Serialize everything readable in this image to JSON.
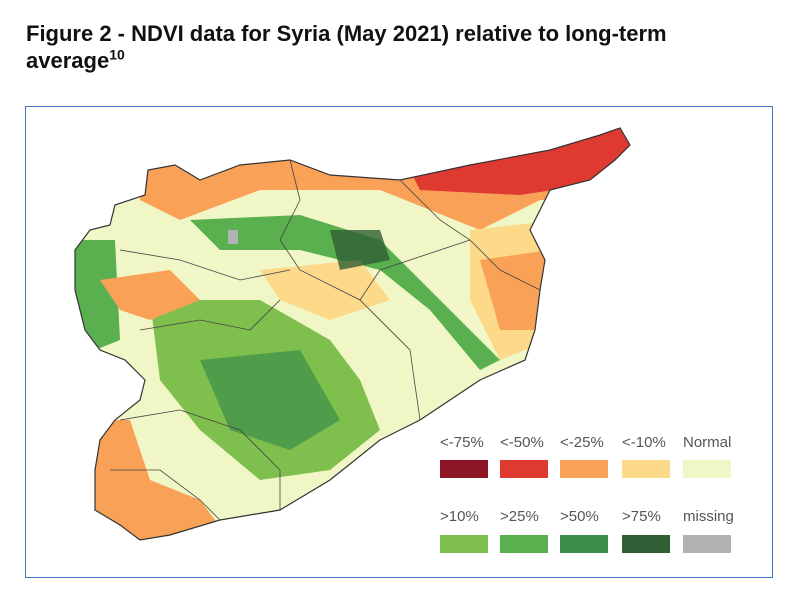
{
  "figure": {
    "title": "Figure 2 - NDVI data for Syria (May 2021) relative to long-term average",
    "footnote": "10"
  },
  "legend": {
    "items": [
      {
        "label": "<-75%",
        "color": "#8c1526"
      },
      {
        "label": "<-50%",
        "color": "#de3a32"
      },
      {
        "label": "<-25%",
        "color": "#f9a257"
      },
      {
        "label": "<-10%",
        "color": "#fdd98a"
      },
      {
        "label": "Normal",
        "color": "#f1f6c6"
      },
      {
        "label": ">10%",
        "color": "#7fbf4d"
      },
      {
        "label": ">25%",
        "color": "#5aaf4f"
      },
      {
        "label": ">50%",
        "color": "#3b8f48"
      },
      {
        "label": ">75%",
        "color": "#2f5e35"
      },
      {
        "label": "missing",
        "color": "#b0b2b3"
      }
    ]
  }
}
